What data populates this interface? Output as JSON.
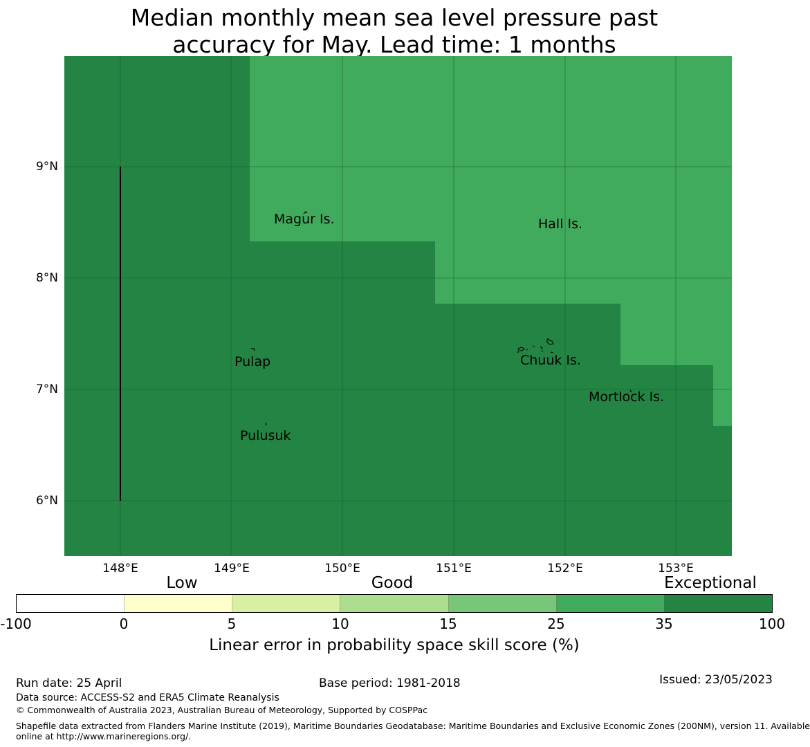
{
  "title": {
    "line1": "Median monthly mean sea level pressure past",
    "line2": "accuracy for May. Lead time: 1 months"
  },
  "map": {
    "lat_labels": [
      "9°N",
      "8°N",
      "7°N",
      "6°N"
    ],
    "lon_labels": [
      "148°E",
      "149°E",
      "150°E",
      "151°E",
      "152°E",
      "153°E"
    ],
    "places": [
      "Magur Is.",
      "Hall Is.",
      "Pulap",
      "Chuuk Is.",
      "Mortlock Is.",
      "Pulusuk"
    ],
    "colors": {
      "exceptional": "#238443",
      "very_good": "#41ab5d",
      "grid": "#1a5c30"
    }
  },
  "legend": {
    "categories": [
      "Low",
      "Good",
      "Exceptional"
    ],
    "ticks": [
      "-100",
      "0",
      "5",
      "10",
      "15",
      "25",
      "35",
      "100"
    ],
    "colors": [
      "#ffffff",
      "#ffffcc",
      "#d9f0a3",
      "#addd8e",
      "#78c679",
      "#41ab5d",
      "#238443"
    ],
    "title": "Linear error in probability space skill score (%)"
  },
  "footer": {
    "run_date": "Run date: 25 April",
    "base_period": "Base period: 1981-2018",
    "issued": "Issued: 23/05/2023",
    "data_source": "Data source: ACCESS-S2 and ERA5 Climate Reanalysis",
    "copyright": "© Commonwealth of Australia 2023, Australian Bureau of Meteorology, Supported by COSPPac",
    "shapefile_line1": "Shapefile data extracted from Flanders Marine Institute (2019), Maritime Boundaries Geodatabase: Maritime Boundaries and Exclusive Economic Zones (200NM), version 11. Available",
    "shapefile_line2": "online at http://www.marineregions.org/."
  }
}
